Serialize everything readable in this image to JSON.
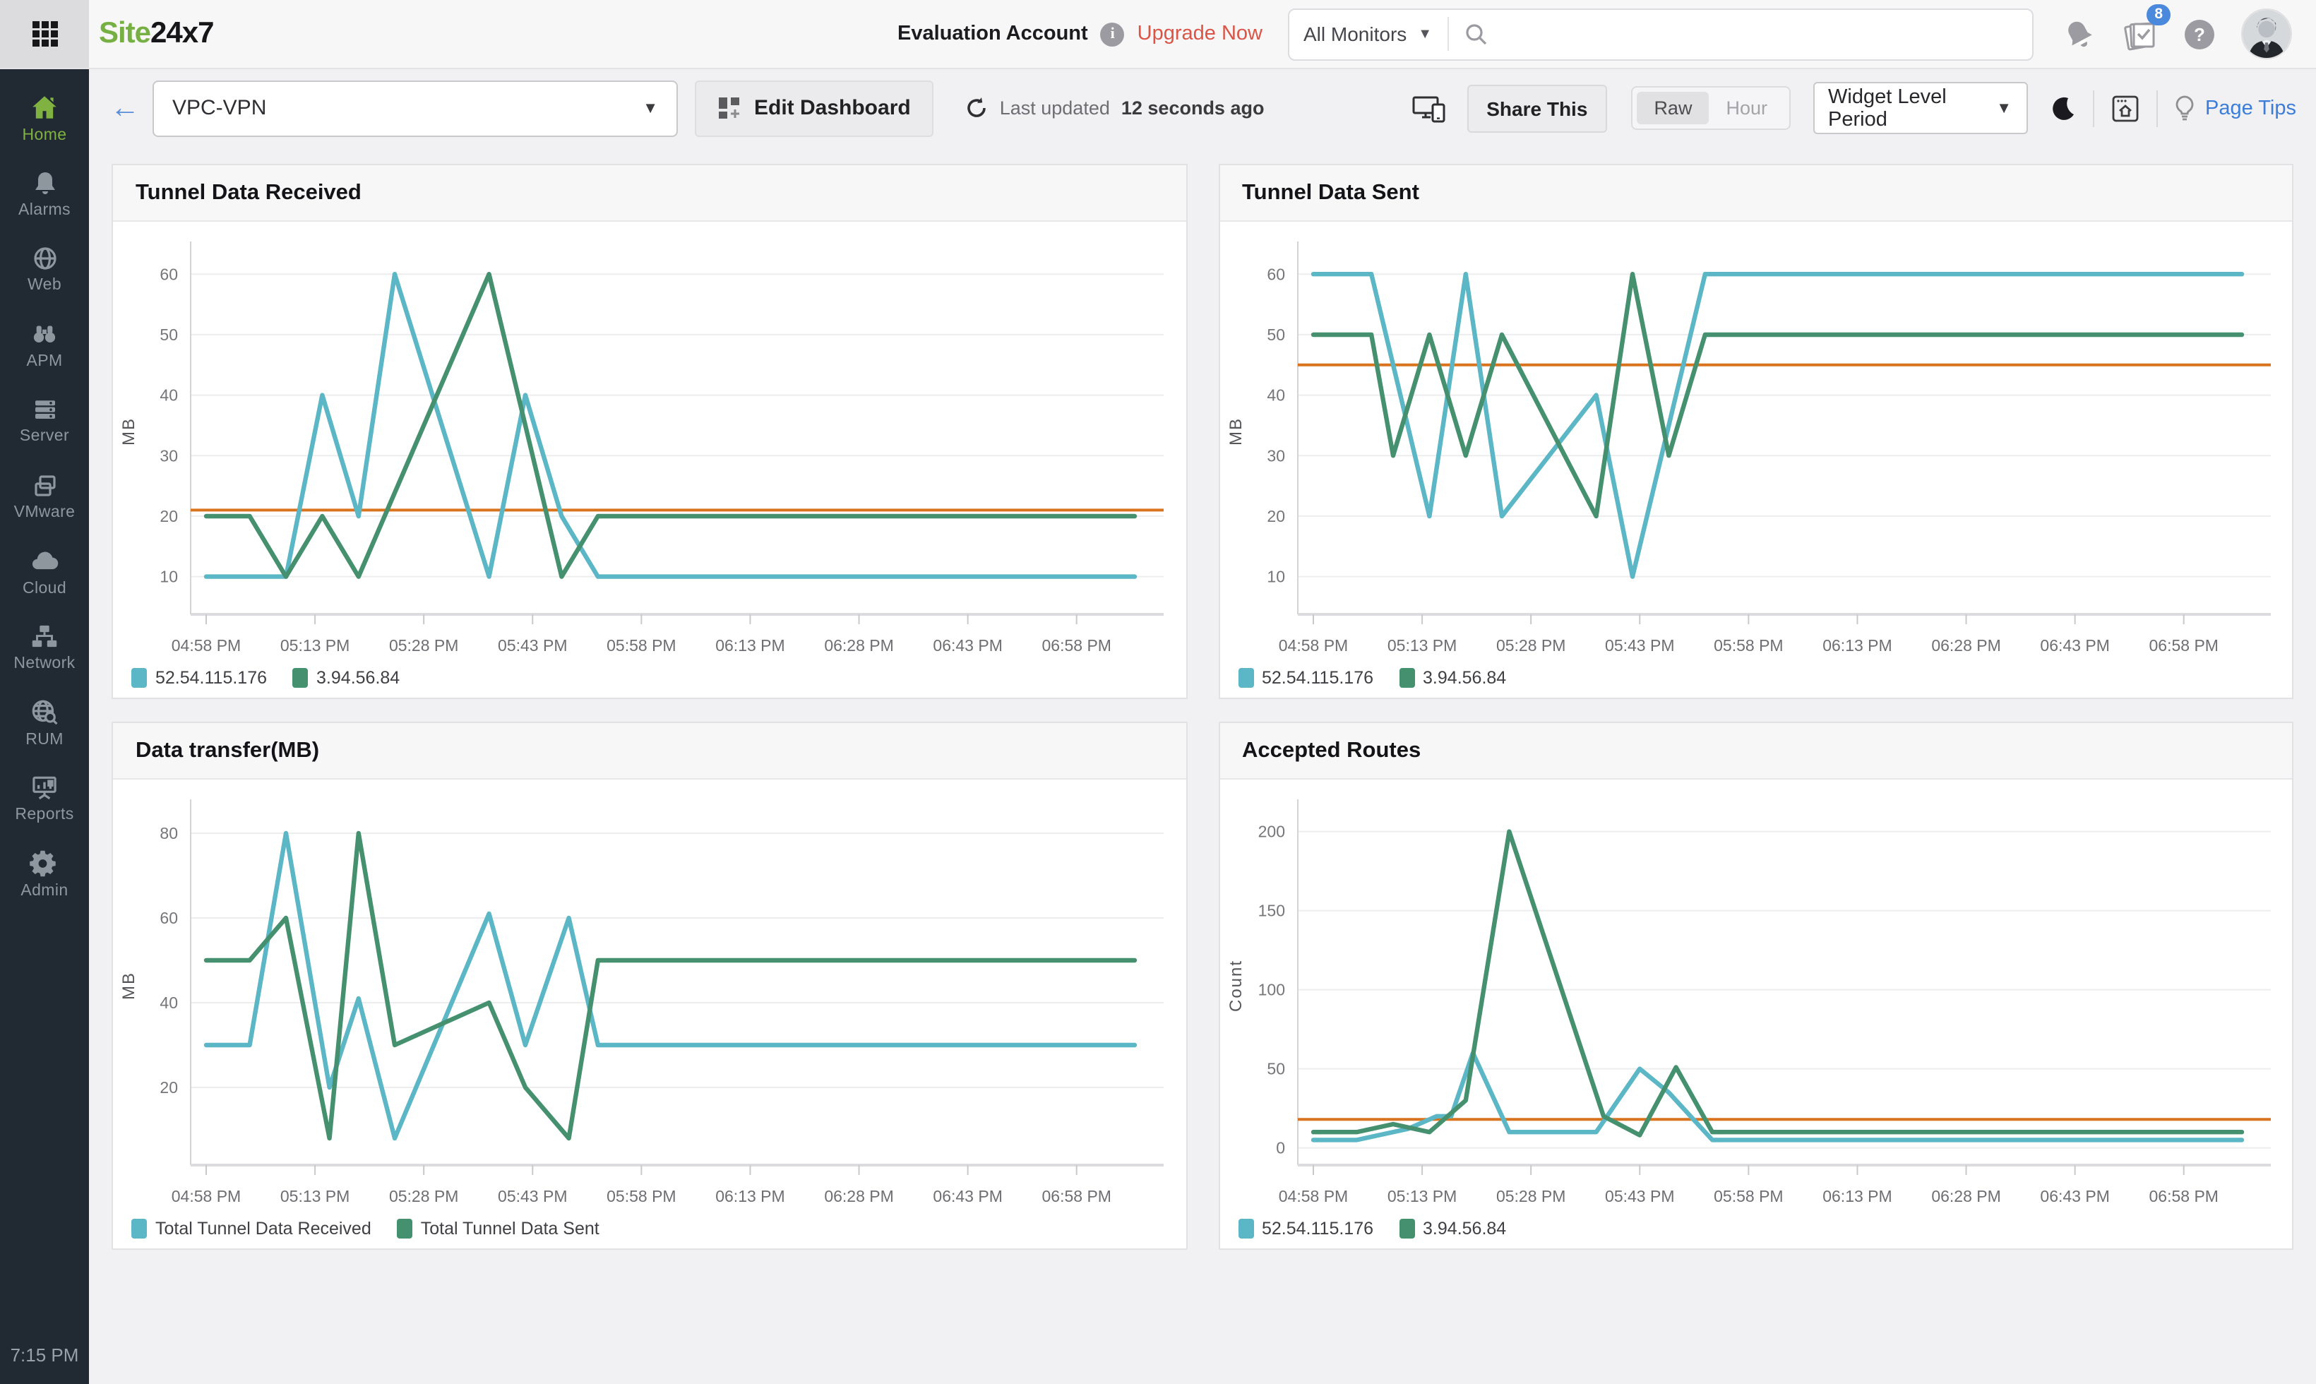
{
  "topbar": {
    "logo_site": "Site",
    "logo_247": "24x7",
    "evaluation_label": "Evaluation Account",
    "upgrade_label": "Upgrade Now",
    "monitor_filter": "All Monitors",
    "search_placeholder": "",
    "notification_badge": "8"
  },
  "toolbar": {
    "dashboard_name": "VPC-VPN",
    "edit_dashboard": "Edit Dashboard",
    "last_updated_prefix": "Last updated",
    "last_updated_value": "12 seconds ago",
    "share_this": "Share This",
    "raw": "Raw",
    "hour": "Hour",
    "period": "Widget Level Period",
    "page_tips": "Page Tips"
  },
  "sidebar": {
    "items": [
      {
        "label": "Home",
        "active": true
      },
      {
        "label": "Alarms",
        "active": false
      },
      {
        "label": "Web",
        "active": false
      },
      {
        "label": "APM",
        "active": false
      },
      {
        "label": "Server",
        "active": false
      },
      {
        "label": "VMware",
        "active": false
      },
      {
        "label": "Cloud",
        "active": false
      },
      {
        "label": "Network",
        "active": false
      },
      {
        "label": "RUM",
        "active": false
      },
      {
        "label": "Reports",
        "active": false
      },
      {
        "label": "Admin",
        "active": false
      }
    ],
    "time": "7:15 PM"
  },
  "colors": {
    "teal": "#5bb6c5",
    "green": "#45906f",
    "threshold": "#d9731e",
    "active_green": "#7fb241",
    "badge_blue": "#4a89dc",
    "upgrade_red": "#db5446",
    "pagetips_blue": "#3b7dd8"
  },
  "chart_data": [
    {
      "type": "line",
      "title": "Tunnel Data Received",
      "ylabel": "MB",
      "x_tick_labels": [
        "04:58 PM",
        "05:13 PM",
        "05:28 PM",
        "05:43 PM",
        "05:58 PM",
        "06:13 PM",
        "06:28 PM",
        "06:43 PM",
        "06:58 PM"
      ],
      "x_tick_minutes": [
        0,
        15,
        30,
        45,
        60,
        75,
        90,
        105,
        120
      ],
      "x_range": [
        0,
        132
      ],
      "y_range": [
        4,
        64
      ],
      "y_ticks": [
        10,
        20,
        30,
        40,
        50,
        60
      ],
      "threshold": 21,
      "threshold_color": "#d9731e",
      "series": [
        {
          "name": "52.54.115.176",
          "color": "#5bb6c5",
          "points": [
            [
              0,
              10
            ],
            [
              11,
              10
            ],
            [
              16,
              40
            ],
            [
              21,
              20
            ],
            [
              26,
              60
            ],
            [
              39,
              10
            ],
            [
              44,
              40
            ],
            [
              49,
              20
            ],
            [
              54,
              10
            ],
            [
              128,
              10
            ]
          ]
        },
        {
          "name": "3.94.56.84",
          "color": "#45906f",
          "points": [
            [
              0,
              20
            ],
            [
              6,
              20
            ],
            [
              11,
              10
            ],
            [
              16,
              20
            ],
            [
              21,
              10
            ],
            [
              39,
              60
            ],
            [
              49,
              10
            ],
            [
              54,
              20
            ],
            [
              128,
              20
            ]
          ]
        }
      ]
    },
    {
      "type": "line",
      "title": "Tunnel Data Sent",
      "ylabel": "MB",
      "x_tick_labels": [
        "04:58 PM",
        "05:13 PM",
        "05:28 PM",
        "05:43 PM",
        "05:58 PM",
        "06:13 PM",
        "06:28 PM",
        "06:43 PM",
        "06:58 PM"
      ],
      "x_tick_minutes": [
        0,
        15,
        30,
        45,
        60,
        75,
        90,
        105,
        120
      ],
      "x_range": [
        0,
        132
      ],
      "y_range": [
        4,
        64
      ],
      "y_ticks": [
        10,
        20,
        30,
        40,
        50,
        60
      ],
      "threshold": 45,
      "threshold_color": "#d9731e",
      "series": [
        {
          "name": "52.54.115.176",
          "color": "#5bb6c5",
          "points": [
            [
              0,
              60
            ],
            [
              8,
              60
            ],
            [
              16,
              20
            ],
            [
              21,
              60
            ],
            [
              26,
              20
            ],
            [
              39,
              40
            ],
            [
              44,
              10
            ],
            [
              54,
              60
            ],
            [
              128,
              60
            ]
          ]
        },
        {
          "name": "3.94.56.84",
          "color": "#45906f",
          "points": [
            [
              0,
              50
            ],
            [
              8,
              50
            ],
            [
              11,
              30
            ],
            [
              16,
              50
            ],
            [
              21,
              30
            ],
            [
              26,
              50
            ],
            [
              39,
              20
            ],
            [
              44,
              60
            ],
            [
              49,
              30
            ],
            [
              54,
              50
            ],
            [
              128,
              50
            ]
          ]
        }
      ]
    },
    {
      "type": "line",
      "title": "Data transfer(MB)",
      "ylabel": "MB",
      "x_tick_labels": [
        "04:58 PM",
        "05:13 PM",
        "05:28 PM",
        "05:43 PM",
        "05:58 PM",
        "06:13 PM",
        "06:28 PM",
        "06:43 PM",
        "06:58 PM"
      ],
      "x_tick_minutes": [
        0,
        15,
        30,
        45,
        60,
        75,
        90,
        105,
        120
      ],
      "x_range": [
        0,
        132
      ],
      "y_range": [
        2,
        86
      ],
      "y_ticks": [
        20,
        40,
        60,
        80
      ],
      "threshold": null,
      "threshold_color": "#d9731e",
      "series": [
        {
          "name": "Total Tunnel Data Received",
          "color": "#5bb6c5",
          "points": [
            [
              0,
              30
            ],
            [
              6,
              30
            ],
            [
              11,
              80
            ],
            [
              17,
              20
            ],
            [
              21,
              41
            ],
            [
              26,
              8
            ],
            [
              39,
              61
            ],
            [
              44,
              30
            ],
            [
              50,
              60
            ],
            [
              54,
              30
            ],
            [
              128,
              30
            ]
          ]
        },
        {
          "name": "Total Tunnel Data Sent",
          "color": "#45906f",
          "points": [
            [
              0,
              50
            ],
            [
              6,
              50
            ],
            [
              11,
              60
            ],
            [
              17,
              8
            ],
            [
              21,
              80
            ],
            [
              26,
              30
            ],
            [
              39,
              40
            ],
            [
              44,
              20
            ],
            [
              50,
              8
            ],
            [
              54,
              50
            ],
            [
              128,
              50
            ]
          ]
        }
      ]
    },
    {
      "type": "line",
      "title": "Accepted Routes",
      "ylabel": "Count",
      "x_tick_labels": [
        "04:58 PM",
        "05:13 PM",
        "05:28 PM",
        "05:43 PM",
        "05:58 PM",
        "06:13 PM",
        "06:28 PM",
        "06:43 PM",
        "06:58 PM"
      ],
      "x_tick_minutes": [
        0,
        15,
        30,
        45,
        60,
        75,
        90,
        105,
        120
      ],
      "x_range": [
        0,
        132
      ],
      "y_range": [
        -10,
        215
      ],
      "y_ticks": [
        0,
        50,
        100,
        150,
        200
      ],
      "threshold": 18,
      "threshold_color": "#d9731e",
      "series": [
        {
          "name": "52.54.115.176",
          "color": "#5bb6c5",
          "points": [
            [
              0,
              5
            ],
            [
              6,
              5
            ],
            [
              13,
              12
            ],
            [
              17,
              20
            ],
            [
              19,
              20
            ],
            [
              22,
              60
            ],
            [
              27,
              10
            ],
            [
              39,
              10
            ],
            [
              45,
              50
            ],
            [
              49,
              35
            ],
            [
              55,
              5
            ],
            [
              128,
              5
            ]
          ]
        },
        {
          "name": "3.94.56.84",
          "color": "#45906f",
          "points": [
            [
              0,
              10
            ],
            [
              6,
              10
            ],
            [
              11,
              15
            ],
            [
              16,
              10
            ],
            [
              21,
              30
            ],
            [
              27,
              200
            ],
            [
              40,
              20
            ],
            [
              45,
              8
            ],
            [
              50,
              51
            ],
            [
              55,
              10
            ],
            [
              128,
              10
            ]
          ]
        }
      ]
    }
  ]
}
